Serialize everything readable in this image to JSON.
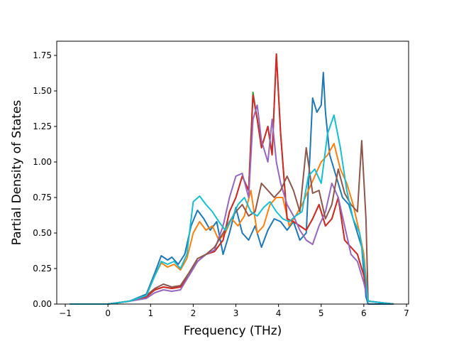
{
  "chart_data": {
    "type": "line",
    "xlabel": "Frequency (THz)",
    "ylabel": "Partial Density of States",
    "xlim": [
      -1.2,
      7.05
    ],
    "ylim": [
      0,
      1.85
    ],
    "xticks": [
      "−1",
      "0",
      "1",
      "2",
      "3",
      "4",
      "5",
      "6",
      "7"
    ],
    "xtick_values": [
      -1,
      0,
      1,
      2,
      3,
      4,
      5,
      6,
      7
    ],
    "yticks": [
      "0.00",
      "0.25",
      "0.50",
      "0.75",
      "1.00",
      "1.25",
      "1.50",
      "1.75"
    ],
    "ytick_values": [
      0,
      0.25,
      0.5,
      0.75,
      1.0,
      1.25,
      1.5,
      1.75
    ],
    "grid": false,
    "series": [
      {
        "color": "#1f77b4",
        "x": [
          -0.9,
          0.0,
          0.5,
          0.9,
          1.1,
          1.25,
          1.4,
          1.5,
          1.65,
          1.8,
          1.95,
          2.1,
          2.25,
          2.4,
          2.55,
          2.7,
          2.85,
          3.0,
          3.15,
          3.3,
          3.45,
          3.6,
          3.75,
          3.9,
          4.05,
          4.2,
          4.35,
          4.5,
          4.65,
          4.8,
          4.9,
          5.0,
          5.05,
          5.1,
          5.2,
          5.35,
          5.5,
          5.65,
          5.8,
          5.95,
          6.05,
          6.1,
          6.7
        ],
        "y": [
          0,
          0,
          0.02,
          0.07,
          0.22,
          0.34,
          0.31,
          0.33,
          0.28,
          0.35,
          0.55,
          0.66,
          0.6,
          0.52,
          0.58,
          0.35,
          0.5,
          0.68,
          0.5,
          0.45,
          0.55,
          0.4,
          0.52,
          0.6,
          0.58,
          0.52,
          0.58,
          0.45,
          0.5,
          1.45,
          1.35,
          1.4,
          1.63,
          1.35,
          1.05,
          0.9,
          0.75,
          0.7,
          0.55,
          0.4,
          0.05,
          0,
          0
        ]
      },
      {
        "color": "#ff7f0e",
        "x": [
          -0.9,
          0.0,
          0.5,
          0.9,
          1.1,
          1.25,
          1.4,
          1.55,
          1.7,
          1.85,
          2.0,
          2.15,
          2.3,
          2.45,
          2.6,
          2.75,
          2.9,
          3.05,
          3.2,
          3.35,
          3.5,
          3.65,
          3.8,
          3.95,
          4.1,
          4.25,
          4.4,
          4.55,
          4.7,
          4.85,
          5.0,
          5.15,
          5.3,
          5.45,
          5.6,
          5.75,
          5.9,
          6.0,
          6.1,
          6.7
        ],
        "y": [
          0,
          0,
          0.02,
          0.06,
          0.2,
          0.29,
          0.26,
          0.28,
          0.24,
          0.32,
          0.5,
          0.58,
          0.52,
          0.55,
          0.45,
          0.5,
          0.6,
          0.55,
          0.62,
          0.8,
          0.5,
          0.55,
          0.7,
          0.75,
          0.75,
          0.55,
          0.62,
          0.7,
          0.8,
          0.9,
          1.0,
          1.05,
          1.13,
          0.95,
          0.85,
          0.7,
          0.5,
          0.35,
          0.02,
          0
        ]
      },
      {
        "color": "#2ca02c",
        "x": [
          -0.9,
          0.0,
          0.5,
          0.9,
          1.1,
          1.3,
          1.5,
          1.7,
          1.9,
          2.1,
          2.3,
          2.5,
          2.7,
          2.85,
          3.0,
          3.15,
          3.3,
          3.4,
          3.5,
          3.6,
          3.75,
          3.85,
          3.95,
          4.05,
          4.2,
          4.35,
          4.5,
          4.65,
          4.8,
          4.95,
          5.1,
          5.25,
          5.4,
          5.55,
          5.7,
          5.85,
          6.0,
          6.1,
          6.7
        ],
        "y": [
          0,
          0,
          0.02,
          0.05,
          0.1,
          0.12,
          0.11,
          0.12,
          0.2,
          0.3,
          0.35,
          0.37,
          0.45,
          0.65,
          0.75,
          0.9,
          0.8,
          1.49,
          1.3,
          1.1,
          1.25,
          1.05,
          1.76,
          1.2,
          0.6,
          0.58,
          0.55,
          0.52,
          0.6,
          0.7,
          0.55,
          0.6,
          0.75,
          0.45,
          0.4,
          0.35,
          0.2,
          0.02,
          0
        ]
      },
      {
        "color": "#d62728",
        "x": [
          -0.9,
          0.0,
          0.5,
          0.9,
          1.1,
          1.3,
          1.5,
          1.7,
          1.9,
          2.1,
          2.3,
          2.5,
          2.7,
          2.85,
          3.0,
          3.15,
          3.3,
          3.4,
          3.5,
          3.6,
          3.75,
          3.85,
          3.95,
          4.05,
          4.2,
          4.35,
          4.5,
          4.65,
          4.8,
          4.95,
          5.1,
          5.25,
          5.4,
          5.55,
          5.7,
          5.85,
          6.0,
          6.1,
          6.7
        ],
        "y": [
          0,
          0,
          0.02,
          0.05,
          0.1,
          0.12,
          0.11,
          0.12,
          0.2,
          0.3,
          0.35,
          0.37,
          0.45,
          0.65,
          0.75,
          0.9,
          0.8,
          1.47,
          1.3,
          1.1,
          1.25,
          1.05,
          1.76,
          1.2,
          0.6,
          0.58,
          0.55,
          0.52,
          0.6,
          0.7,
          0.55,
          0.6,
          0.75,
          0.45,
          0.4,
          0.35,
          0.2,
          0.02,
          0
        ]
      },
      {
        "color": "#9467bd",
        "x": [
          -0.9,
          0.0,
          0.5,
          0.9,
          1.1,
          1.3,
          1.5,
          1.7,
          1.9,
          2.1,
          2.3,
          2.5,
          2.7,
          2.85,
          3.0,
          3.15,
          3.3,
          3.4,
          3.5,
          3.6,
          3.75,
          3.85,
          3.95,
          4.05,
          4.2,
          4.35,
          4.5,
          4.65,
          4.8,
          4.95,
          5.1,
          5.25,
          5.4,
          5.55,
          5.7,
          5.85,
          6.0,
          6.1,
          6.7
        ],
        "y": [
          0,
          0,
          0.02,
          0.04,
          0.08,
          0.1,
          0.09,
          0.1,
          0.2,
          0.3,
          0.35,
          0.38,
          0.55,
          0.75,
          0.9,
          0.92,
          0.75,
          1.3,
          1.4,
          1.15,
          1.0,
          1.3,
          1.0,
          0.85,
          0.7,
          0.62,
          0.52,
          0.45,
          0.42,
          0.55,
          0.65,
          0.85,
          0.75,
          0.55,
          0.35,
          0.3,
          0.15,
          0.02,
          0
        ]
      },
      {
        "color": "#8c564b",
        "x": [
          -0.9,
          0.0,
          0.5,
          0.9,
          1.1,
          1.3,
          1.5,
          1.7,
          1.9,
          2.1,
          2.3,
          2.5,
          2.7,
          2.85,
          3.0,
          3.15,
          3.3,
          3.45,
          3.6,
          3.75,
          3.9,
          4.05,
          4.2,
          4.35,
          4.5,
          4.65,
          4.8,
          4.95,
          5.1,
          5.25,
          5.4,
          5.55,
          5.7,
          5.85,
          5.95,
          6.05,
          6.1,
          6.7
        ],
        "y": [
          0,
          0,
          0.02,
          0.06,
          0.11,
          0.14,
          0.12,
          0.13,
          0.22,
          0.32,
          0.35,
          0.4,
          0.5,
          0.58,
          0.65,
          0.7,
          0.62,
          0.65,
          0.85,
          0.8,
          0.75,
          0.8,
          0.9,
          0.8,
          0.65,
          1.1,
          0.78,
          0.8,
          0.6,
          0.7,
          0.95,
          0.78,
          0.7,
          0.65,
          1.15,
          0.6,
          0.02,
          0
        ]
      },
      {
        "color": "#17becf",
        "x": [
          -0.9,
          0.0,
          0.5,
          0.9,
          1.1,
          1.25,
          1.4,
          1.55,
          1.7,
          1.85,
          2.0,
          2.15,
          2.3,
          2.45,
          2.6,
          2.75,
          2.9,
          3.05,
          3.2,
          3.35,
          3.5,
          3.65,
          3.8,
          3.95,
          4.1,
          4.25,
          4.4,
          4.55,
          4.7,
          4.85,
          5.0,
          5.15,
          5.3,
          5.45,
          5.6,
          5.75,
          5.9,
          6.0,
          6.1,
          6.7
        ],
        "y": [
          0,
          0,
          0.02,
          0.06,
          0.2,
          0.3,
          0.28,
          0.3,
          0.25,
          0.35,
          0.72,
          0.76,
          0.7,
          0.65,
          0.58,
          0.52,
          0.6,
          0.7,
          0.75,
          0.65,
          0.62,
          0.68,
          0.72,
          0.65,
          0.6,
          0.58,
          0.62,
          0.65,
          0.9,
          0.95,
          0.85,
          1.2,
          1.33,
          1.1,
          0.8,
          0.6,
          0.5,
          0.3,
          0.02,
          0
        ]
      }
    ]
  }
}
